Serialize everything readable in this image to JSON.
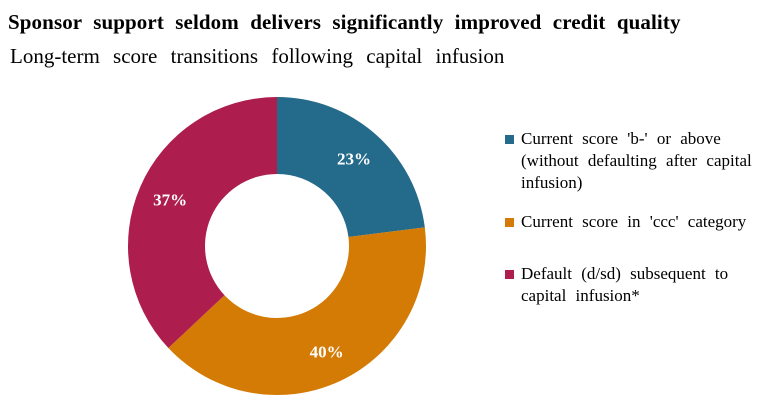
{
  "title": "Sponsor support seldom delivers significantly improved credit quality",
  "subtitle": "Long-term score transitions following capital infusion",
  "chart_data": {
    "type": "pie",
    "donut": true,
    "categories": [
      "Current score 'b-' or above (without defaulting after capital infusion)",
      "Current score in 'ccc' category",
      "Default (d/sd) subsequent to capital infusion*"
    ],
    "values": [
      23,
      40,
      37
    ],
    "labels": [
      "23%",
      "40%",
      "37%"
    ],
    "colors": [
      "#246a8a",
      "#d47b05",
      "#ad1e4f"
    ],
    "legend_position": "right"
  }
}
